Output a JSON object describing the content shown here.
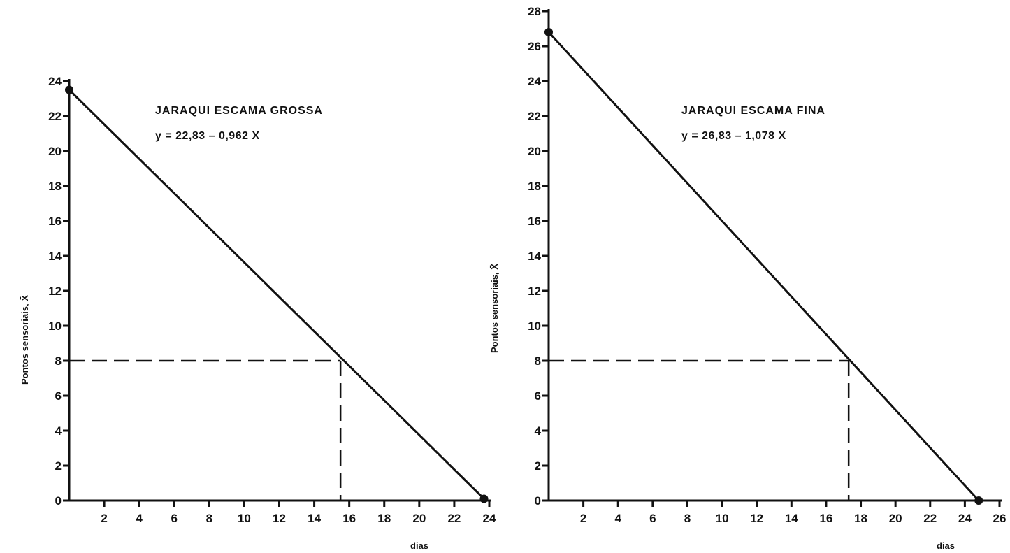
{
  "chart_data": [
    {
      "type": "line",
      "title": "JARAQUI ESCAMA GROSSA",
      "equation": "y = 22,83 – 0,962 X",
      "xlabel": "dias",
      "ylabel": "Pontos sensoriais, X̄",
      "xlim": [
        0,
        24
      ],
      "ylim": [
        0,
        24
      ],
      "x_ticks": [
        "2",
        "4",
        "6",
        "8",
        "10",
        "12",
        "14",
        "16",
        "18",
        "20",
        "22",
        "24"
      ],
      "y_ticks": [
        "0",
        "2",
        "4",
        "6",
        "8",
        "10",
        "12",
        "14",
        "16",
        "18",
        "20",
        "22",
        "24"
      ],
      "series": [
        {
          "x": [
            0,
            23.7
          ],
          "y": [
            23.5,
            0.1
          ]
        }
      ],
      "endpoints": [
        {
          "x": 0,
          "y": 23.5
        },
        {
          "x": 23.7,
          "y": 0.1
        }
      ],
      "guide": {
        "x": 15.5,
        "y": 8
      },
      "grid": false
    },
    {
      "type": "line",
      "title": "JARAQUI ESCAMA FINA",
      "equation": "y = 26,83 – 1,078 X",
      "xlabel": "dias",
      "ylabel": "Pontos sensoriais, X̄",
      "xlim": [
        0,
        26
      ],
      "ylim": [
        0,
        28
      ],
      "x_ticks": [
        "2",
        "4",
        "6",
        "8",
        "10",
        "12",
        "14",
        "16",
        "18",
        "20",
        "22",
        "24",
        "26"
      ],
      "y_ticks": [
        "0",
        "2",
        "4",
        "6",
        "8",
        "10",
        "12",
        "14",
        "16",
        "18",
        "20",
        "22",
        "24",
        "26",
        "28"
      ],
      "series": [
        {
          "x": [
            0,
            24.8
          ],
          "y": [
            26.8,
            0
          ]
        }
      ],
      "endpoints": [
        {
          "x": 0,
          "y": 26.8
        },
        {
          "x": 24.8,
          "y": 0
        }
      ],
      "guide": {
        "x": 17.3,
        "y": 8
      },
      "grid": false
    }
  ]
}
